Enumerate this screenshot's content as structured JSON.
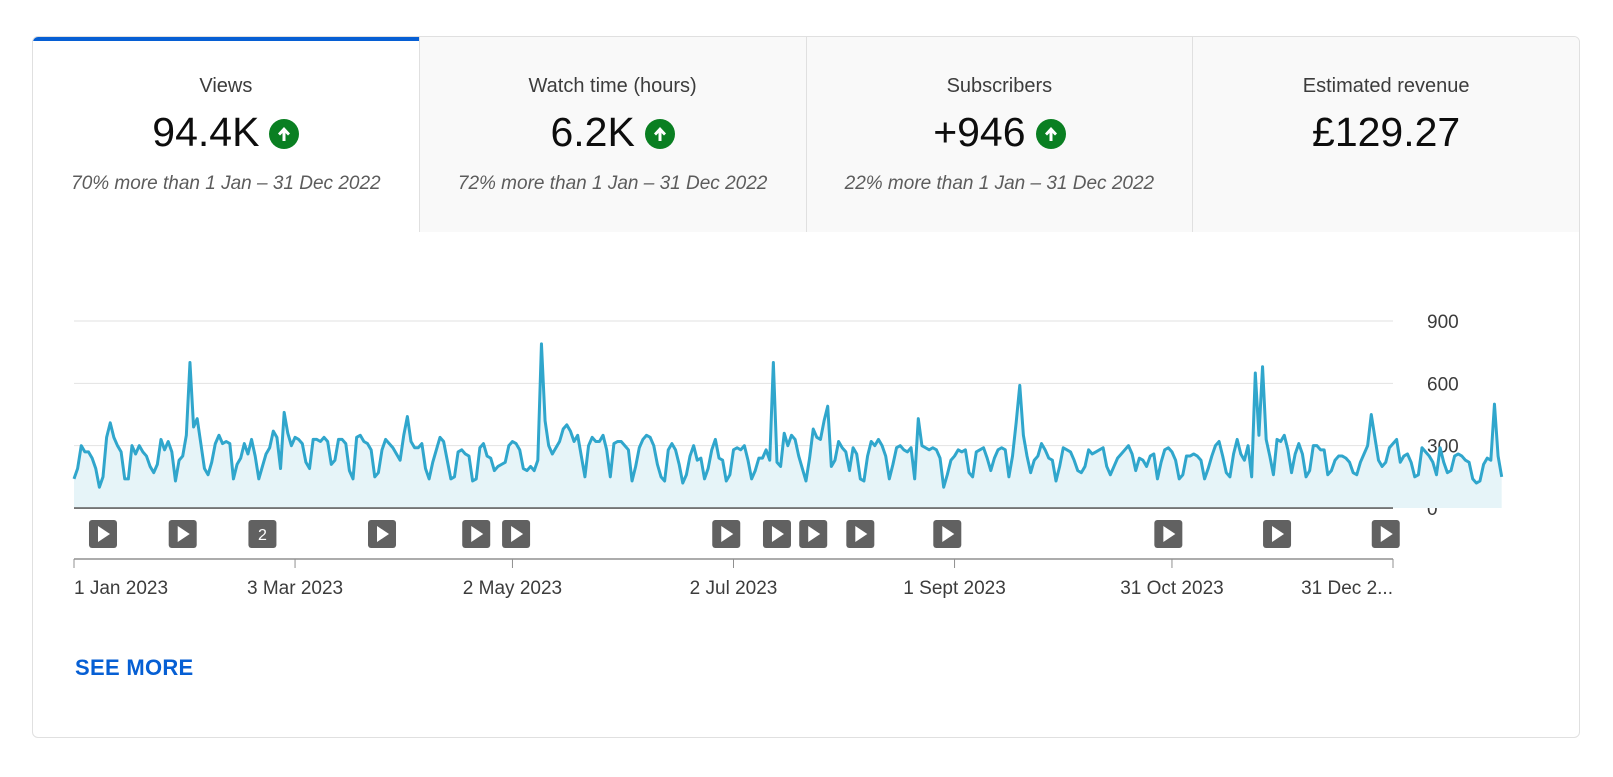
{
  "tabs": [
    {
      "title": "Views",
      "value": "94.4K",
      "trend": "up",
      "comparison": "70% more than 1 Jan – 31 Dec 2022",
      "active": true
    },
    {
      "title": "Watch time (hours)",
      "value": "6.2K",
      "trend": "up",
      "comparison": "72% more than 1 Jan – 31 Dec 2022",
      "active": false
    },
    {
      "title": "Subscribers",
      "value": "+946",
      "trend": "up",
      "comparison": "22% more than 1 Jan – 31 Dec 2022",
      "active": false
    },
    {
      "title": "Estimated revenue",
      "value": "£129.27",
      "trend": "none",
      "comparison": "",
      "active": false
    }
  ],
  "colors": {
    "accent": "#065fd4",
    "line": "#30a6cc",
    "area": "#e6f4f8",
    "trend_up": "#0a7f22"
  },
  "icons": {
    "trend_up": "arrow-up-circle-icon",
    "video_marker": "play-icon"
  },
  "chart_data": {
    "type": "area",
    "ylim": [
      0,
      900
    ],
    "y_ticks": [
      "900",
      "600",
      "300",
      "0"
    ],
    "x_ticks": [
      {
        "label": "1 Jan 2023",
        "day": 0
      },
      {
        "label": "3 Mar 2023",
        "day": 61
      },
      {
        "label": "2 May 2023",
        "day": 121
      },
      {
        "label": "2 Jul 2023",
        "day": 182
      },
      {
        "label": "1 Sept 2023",
        "day": 243
      },
      {
        "label": "31 Oct 2023",
        "day": 303
      },
      {
        "label": "31 Dec 2...",
        "day": 364
      }
    ],
    "start_date": "2023-01-01",
    "daily_views": [
      140,
      190,
      300,
      270,
      270,
      240,
      190,
      100,
      150,
      340,
      410,
      340,
      300,
      270,
      140,
      140,
      300,
      260,
      300,
      270,
      250,
      200,
      170,
      210,
      330,
      280,
      320,
      270,
      130,
      230,
      250,
      350,
      700,
      390,
      430,
      310,
      190,
      160,
      220,
      310,
      350,
      310,
      320,
      310,
      140,
      210,
      240,
      310,
      260,
      330,
      250,
      140,
      200,
      260,
      290,
      370,
      340,
      190,
      460,
      360,
      300,
      340,
      330,
      310,
      220,
      190,
      330,
      330,
      320,
      340,
      320,
      210,
      230,
      330,
      330,
      310,
      180,
      140,
      340,
      350,
      320,
      310,
      280,
      150,
      170,
      280,
      330,
      310,
      290,
      260,
      230,
      350,
      440,
      320,
      290,
      290,
      310,
      190,
      140,
      220,
      280,
      340,
      320,
      230,
      140,
      150,
      270,
      280,
      260,
      250,
      130,
      140,
      290,
      310,
      250,
      240,
      180,
      200,
      210,
      220,
      300,
      320,
      310,
      280,
      190,
      180,
      200,
      180,
      230,
      790,
      420,
      300,
      260,
      290,
      320,
      380,
      400,
      370,
      320,
      350,
      250,
      150,
      300,
      340,
      320,
      320,
      350,
      280,
      150,
      310,
      320,
      320,
      300,
      280,
      130,
      200,
      290,
      330,
      350,
      340,
      300,
      210,
      150,
      130,
      280,
      310,
      280,
      210,
      120,
      160,
      250,
      300,
      230,
      240,
      140,
      190,
      280,
      330,
      240,
      230,
      130,
      160,
      280,
      290,
      280,
      300,
      230,
      140,
      180,
      240,
      240,
      280,
      230,
      700,
      220,
      200,
      360,
      300,
      350,
      330,
      250,
      190,
      130,
      240,
      380,
      340,
      330,
      420,
      490,
      200,
      230,
      320,
      290,
      270,
      180,
      290,
      260,
      140,
      130,
      250,
      320,
      300,
      330,
      300,
      250,
      140,
      210,
      290,
      300,
      280,
      270,
      290,
      140,
      430,
      300,
      290,
      280,
      290,
      280,
      240,
      100,
      160,
      230,
      250,
      280,
      270,
      280,
      170,
      150,
      270,
      280,
      290,
      240,
      180,
      240,
      280,
      290,
      280,
      150,
      250,
      410,
      590,
      350,
      250,
      170,
      230,
      250,
      310,
      280,
      240,
      230,
      130,
      200,
      290,
      280,
      270,
      230,
      180,
      170,
      200,
      280,
      260,
      270,
      280,
      290,
      200,
      160,
      200,
      240,
      260,
      280,
      300,
      260,
      180,
      240,
      230,
      200,
      250,
      260,
      140,
      220,
      280,
      290,
      270,
      230,
      140,
      160,
      250,
      250,
      260,
      250,
      230,
      140,
      190,
      250,
      300,
      320,
      250,
      170,
      150,
      260,
      330,
      260,
      230,
      300,
      150,
      650,
      350,
      680,
      330,
      250,
      160,
      330,
      320,
      350,
      280,
      170,
      260,
      310,
      260,
      150,
      180,
      300,
      300,
      280,
      280,
      160,
      180,
      230,
      250,
      250,
      240,
      220,
      170,
      160,
      220,
      260,
      300,
      450,
      340,
      230,
      200,
      220,
      290,
      310,
      330,
      220,
      250,
      260,
      220,
      150,
      160,
      290,
      270,
      250,
      220,
      160,
      290,
      220,
      170,
      180,
      250,
      260,
      250,
      230,
      220,
      140,
      120,
      130,
      210,
      240,
      230,
      500,
      250,
      150
    ],
    "video_markers": [
      {
        "day": 8,
        "count": 1
      },
      {
        "day": 30,
        "count": 1
      },
      {
        "day": 52,
        "count": 2
      },
      {
        "day": 85,
        "count": 1
      },
      {
        "day": 111,
        "count": 1
      },
      {
        "day": 122,
        "count": 1
      },
      {
        "day": 180,
        "count": 1
      },
      {
        "day": 194,
        "count": 1
      },
      {
        "day": 204,
        "count": 1
      },
      {
        "day": 217,
        "count": 1
      },
      {
        "day": 241,
        "count": 1
      },
      {
        "day": 302,
        "count": 1
      },
      {
        "day": 332,
        "count": 1
      },
      {
        "day": 362,
        "count": 1
      }
    ]
  },
  "see_more_label": "SEE MORE"
}
